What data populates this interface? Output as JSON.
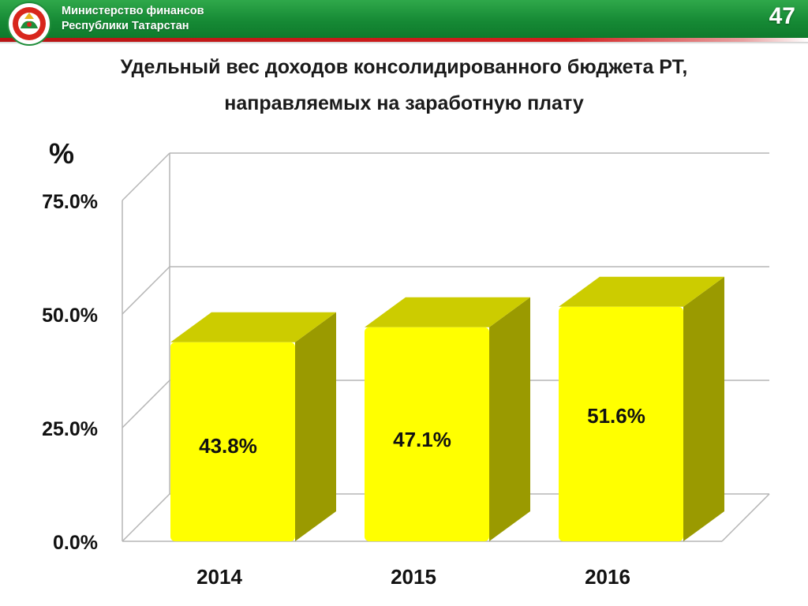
{
  "header": {
    "org_line1": "Министерство финансов",
    "org_line2": "Республики Татарстан",
    "slide_number": "47",
    "logo_icon": "tatarstan-emblem-icon"
  },
  "title": {
    "line1": "Удельный вес  доходов консолидированного бюджета РТ,",
    "line2": "направляемых на заработную плату"
  },
  "colors": {
    "header_green": "#168a35",
    "stripe_red": "#d31e1e",
    "bar_front": "#ffff00",
    "bar_top": "#cccc00",
    "bar_side": "#9a9a00"
  },
  "chart_data": {
    "type": "bar",
    "style": "3d",
    "ylabel": "%",
    "categories": [
      "2014",
      "2015",
      "2016"
    ],
    "values": [
      43.8,
      47.1,
      51.6
    ],
    "value_labels": [
      "43.8%",
      "47.1%",
      "51.6%"
    ],
    "yticks": [
      0,
      25,
      50,
      75
    ],
    "ytick_labels": [
      "0.0%",
      "25.0%",
      "50.0%",
      "75.0%"
    ],
    "ylim": [
      0,
      75
    ],
    "grid": true,
    "legend": false
  }
}
